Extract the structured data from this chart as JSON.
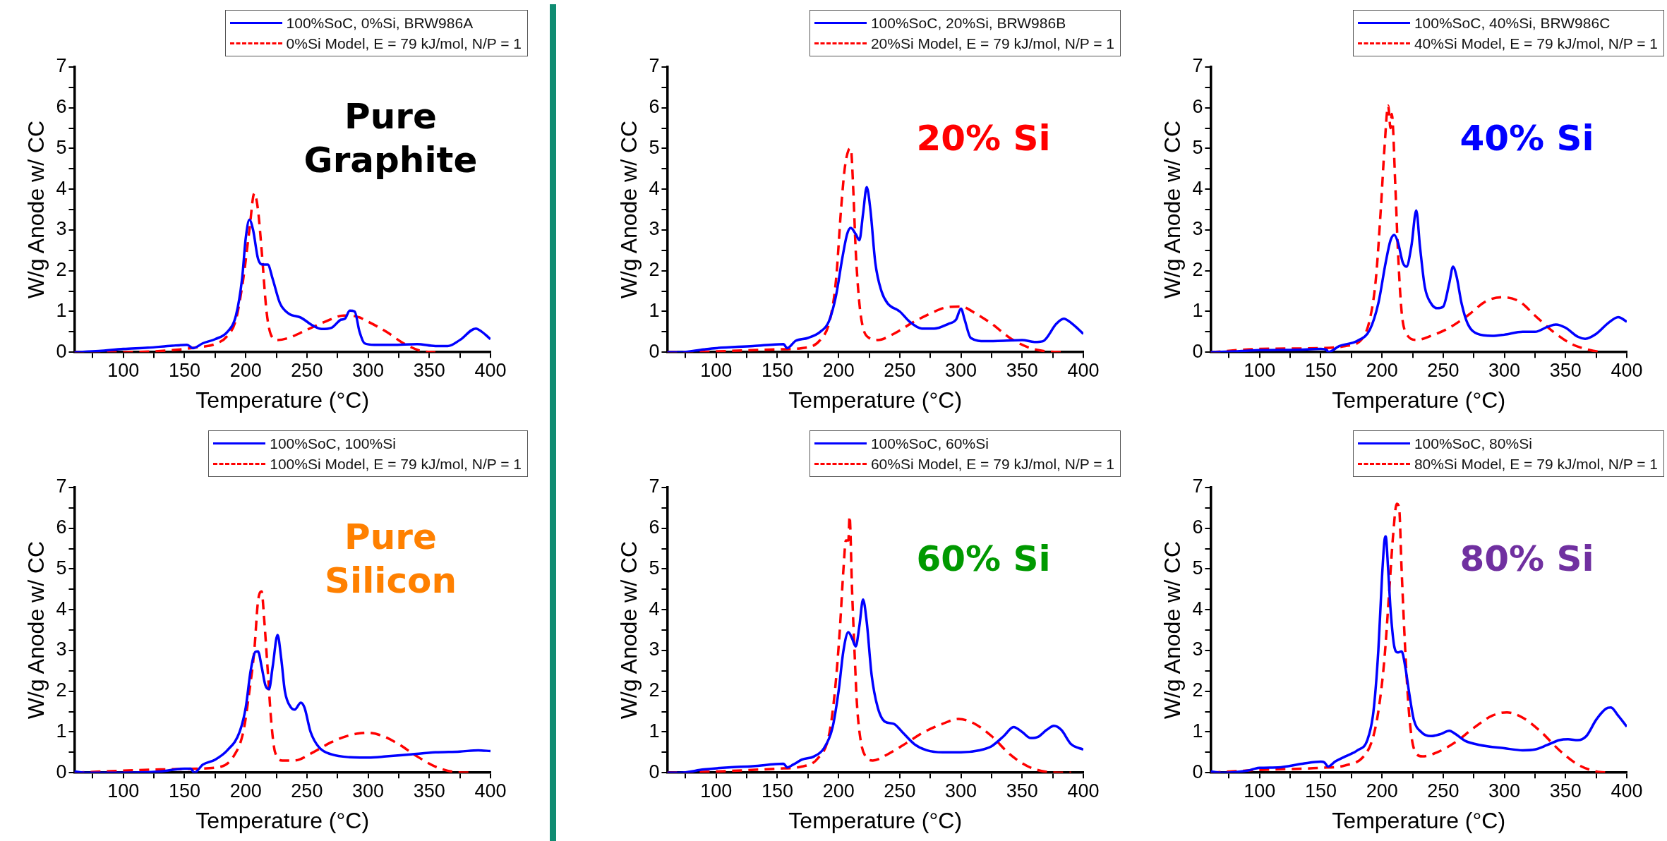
{
  "chart_data": [
    {
      "type": "line",
      "xlabel": "Temperature (°C)",
      "ylabel": "W/g Anode w/ CC",
      "xlim": [
        60,
        400
      ],
      "ylim": [
        0,
        7
      ],
      "xticks": [
        {
          "value": 75,
          "label": null
        },
        100,
        {
          "value": 125,
          "label": null
        },
        150,
        {
          "value": 175,
          "label": null
        },
        200,
        {
          "value": 225,
          "label": null
        },
        250,
        {
          "value": 275,
          "label": null
        },
        300,
        {
          "value": 325,
          "label": null
        },
        350,
        {
          "value": 375,
          "label": null
        },
        400
      ],
      "yticks": [
        0,
        {
          "value": 0.5,
          "label": null
        },
        1,
        {
          "value": 1.5,
          "label": null
        },
        2,
        {
          "value": 2.5,
          "label": null
        },
        3,
        {
          "value": 3.5,
          "label": null
        },
        4,
        {
          "value": 4.5,
          "label": null
        },
        5,
        {
          "value": 5.5,
          "label": null
        },
        6,
        {
          "value": 6.5,
          "label": null
        },
        7
      ],
      "grid": false,
      "legend": "top right",
      "marker": "none",
      "annotations": [
        "Pure Graphite"
      ],
      "series": [
        {
          "name": "100%SoC, 0%Si, BRW986A",
          "color": "#0000ff",
          "line_style": "solid",
          "x": [
            60,
            80,
            100,
            120,
            140,
            152,
            157,
            165,
            175,
            185,
            192,
            197,
            200,
            203,
            206,
            210,
            214,
            218,
            222,
            228,
            235,
            245,
            255,
            262,
            270,
            278,
            281,
            285,
            289,
            293,
            297,
            305,
            320,
            340,
            355,
            365,
            375,
            388,
            393,
            400
          ],
          "values": [
            0,
            0.03,
            0.08,
            0.11,
            0.16,
            0.18,
            0.1,
            0.22,
            0.32,
            0.5,
            0.9,
            1.8,
            2.8,
            3.25,
            3.0,
            2.3,
            2.15,
            2.15,
            1.8,
            1.2,
            0.95,
            0.85,
            0.65,
            0.57,
            0.6,
            0.8,
            0.82,
            1.02,
            1.0,
            0.5,
            0.22,
            0.18,
            0.18,
            0.2,
            0.15,
            0.15,
            0.3,
            0.58,
            0.5,
            0.32
          ]
        },
        {
          "name": "0%Si Model, E = 79 kJ/mol, N/P = 1",
          "color": "#ff0000",
          "line_style": "dashed",
          "x": [
            60,
            100,
            140,
            160,
            175,
            185,
            192,
            198,
            203,
            207,
            210,
            213,
            217,
            221,
            226,
            235,
            250,
            265,
            280,
            290,
            300,
            315,
            330,
            345,
            355
          ],
          "values": [
            0,
            0,
            0.05,
            0.12,
            0.2,
            0.4,
            0.8,
            1.8,
            3.0,
            3.9,
            3.5,
            2.5,
            1.0,
            0.4,
            0.3,
            0.35,
            0.55,
            0.75,
            0.9,
            0.88,
            0.75,
            0.5,
            0.2,
            0.02,
            0
          ]
        }
      ]
    },
    {
      "type": "line",
      "xlabel": "Temperature (°C)",
      "ylabel": "W/g Anode w/ CC",
      "xlim": [
        60,
        400
      ],
      "ylim": [
        0,
        7
      ],
      "xticks": [
        {
          "value": 75,
          "label": null
        },
        100,
        {
          "value": 125,
          "label": null
        },
        150,
        {
          "value": 175,
          "label": null
        },
        200,
        {
          "value": 225,
          "label": null
        },
        250,
        {
          "value": 275,
          "label": null
        },
        300,
        {
          "value": 325,
          "label": null
        },
        350,
        {
          "value": 375,
          "label": null
        },
        400
      ],
      "yticks": [
        0,
        {
          "value": 0.5,
          "label": null
        },
        1,
        {
          "value": 1.5,
          "label": null
        },
        2,
        {
          "value": 2.5,
          "label": null
        },
        3,
        {
          "value": 3.5,
          "label": null
        },
        4,
        {
          "value": 4.5,
          "label": null
        },
        5,
        {
          "value": 5.5,
          "label": null
        },
        6,
        {
          "value": 6.5,
          "label": null
        },
        7
      ],
      "grid": false,
      "legend": "top right",
      "marker": "none",
      "annotations": [
        "20% Si"
      ],
      "series": [
        {
          "name": "100%SoC, 20%Si, BRW986B",
          "color": "#0000ff",
          "line_style": "solid",
          "x": [
            60,
            70,
            90,
            100,
            130,
            155,
            158,
            165,
            175,
            185,
            192,
            198,
            203,
            207,
            210,
            214,
            217,
            220,
            223,
            226,
            230,
            235,
            240,
            250,
            258,
            268,
            278,
            290,
            296,
            300,
            303,
            308,
            320,
            335,
            350,
            360,
            367,
            378,
            384,
            390,
            400
          ],
          "values": [
            0,
            0,
            0.07,
            0.1,
            0.15,
            0.2,
            0.1,
            0.28,
            0.35,
            0.5,
            0.75,
            1.4,
            2.3,
            2.9,
            3.05,
            2.9,
            2.75,
            3.4,
            4.05,
            3.5,
            2.2,
            1.5,
            1.2,
            1.0,
            0.75,
            0.58,
            0.58,
            0.7,
            0.8,
            1.07,
            0.8,
            0.35,
            0.27,
            0.28,
            0.3,
            0.25,
            0.27,
            0.7,
            0.82,
            0.72,
            0.45
          ]
        },
        {
          "name": "20%Si Model, E = 79 kJ/mol, N/P = 1",
          "color": "#ff0000",
          "line_style": "dashed",
          "x": [
            60,
            100,
            150,
            170,
            185,
            193,
            198,
            202,
            205,
            208,
            210,
            212,
            214,
            217,
            220,
            225,
            232,
            245,
            260,
            275,
            288,
            300,
            312,
            325,
            340,
            355,
            370,
            385
          ],
          "values": [
            0,
            0.02,
            0.07,
            0.1,
            0.3,
            0.8,
            1.8,
            3.5,
            4.5,
            4.95,
            5.0,
            4.0,
            2.5,
            1.2,
            0.6,
            0.35,
            0.3,
            0.45,
            0.72,
            0.95,
            1.1,
            1.12,
            0.95,
            0.7,
            0.35,
            0.12,
            0.02,
            0
          ]
        }
      ]
    },
    {
      "type": "line",
      "xlabel": "Temperature (°C)",
      "ylabel": "W/g Anode w/ CC",
      "xlim": [
        60,
        400
      ],
      "ylim": [
        0,
        7
      ],
      "xticks": [
        {
          "value": 75,
          "label": null
        },
        100,
        {
          "value": 125,
          "label": null
        },
        150,
        {
          "value": 175,
          "label": null
        },
        200,
        {
          "value": 225,
          "label": null
        },
        250,
        {
          "value": 275,
          "label": null
        },
        300,
        {
          "value": 325,
          "label": null
        },
        350,
        {
          "value": 375,
          "label": null
        },
        400
      ],
      "yticks": [
        0,
        {
          "value": 0.5,
          "label": null
        },
        1,
        {
          "value": 1.5,
          "label": null
        },
        2,
        {
          "value": 2.5,
          "label": null
        },
        3,
        {
          "value": 3.5,
          "label": null
        },
        4,
        {
          "value": 4.5,
          "label": null
        },
        5,
        {
          "value": 5.5,
          "label": null
        },
        6,
        {
          "value": 6.5,
          "label": null
        },
        7
      ],
      "grid": false,
      "legend": "top right",
      "marker": "none",
      "annotations": [
        "40% Si"
      ],
      "series": [
        {
          "name": "100%SoC, 40%Si, BRW986C",
          "color": "#0000ff",
          "line_style": "solid",
          "x": [
            60,
            80,
            100,
            130,
            150,
            155,
            156,
            165,
            180,
            190,
            197,
            203,
            207,
            210,
            213,
            217,
            220,
            224,
            228,
            231,
            235,
            240,
            245,
            250,
            255,
            258,
            261,
            265,
            270,
            278,
            290,
            300,
            315,
            325,
            335,
            342,
            350,
            360,
            366,
            375,
            385,
            393,
            400
          ],
          "values": [
            0,
            0.02,
            0.05,
            0.06,
            0.08,
            0.05,
            0,
            0.15,
            0.28,
            0.55,
            1.2,
            2.2,
            2.75,
            2.88,
            2.7,
            2.2,
            2.1,
            2.6,
            3.48,
            2.6,
            1.6,
            1.2,
            1.08,
            1.12,
            1.7,
            2.1,
            1.85,
            1.2,
            0.7,
            0.45,
            0.4,
            0.43,
            0.5,
            0.5,
            0.62,
            0.68,
            0.6,
            0.38,
            0.33,
            0.45,
            0.72,
            0.86,
            0.75
          ]
        },
        {
          "name": "40%Si Model, E = 79 kJ/mol, N/P = 1",
          "color": "#ff0000",
          "line_style": "dashed",
          "x": [
            60,
            100,
            150,
            170,
            183,
            190,
            195,
            199,
            202,
            205,
            207,
            208,
            211,
            213,
            216,
            220,
            228,
            240,
            255,
            270,
            285,
            298,
            312,
            325,
            340,
            355,
            370,
            380
          ],
          "values": [
            0,
            0.08,
            0.1,
            0.15,
            0.3,
            0.8,
            1.8,
            3.5,
            5.0,
            6.05,
            5.5,
            5.85,
            4.0,
            2.5,
            1.0,
            0.45,
            0.3,
            0.4,
            0.6,
            0.9,
            1.25,
            1.35,
            1.25,
            0.9,
            0.5,
            0.2,
            0.05,
            0
          ]
        }
      ]
    },
    {
      "type": "line",
      "xlabel": "Temperature (°C)",
      "ylabel": "W/g Anode w/ CC",
      "xlim": [
        60,
        400
      ],
      "ylim": [
        0,
        7
      ],
      "xticks": [
        {
          "value": 75,
          "label": null
        },
        100,
        {
          "value": 125,
          "label": null
        },
        150,
        {
          "value": 175,
          "label": null
        },
        200,
        {
          "value": 225,
          "label": null
        },
        250,
        {
          "value": 275,
          "label": null
        },
        300,
        {
          "value": 325,
          "label": null
        },
        350,
        {
          "value": 375,
          "label": null
        },
        400
      ],
      "yticks": [
        0,
        {
          "value": 0.5,
          "label": null
        },
        1,
        {
          "value": 1.5,
          "label": null
        },
        2,
        {
          "value": 2.5,
          "label": null
        },
        3,
        {
          "value": 3.5,
          "label": null
        },
        4,
        {
          "value": 4.5,
          "label": null
        },
        5,
        {
          "value": 5.5,
          "label": null
        },
        6,
        {
          "value": 6.5,
          "label": null
        },
        7
      ],
      "grid": false,
      "legend": "top right",
      "marker": "none",
      "annotations": [
        "Pure Silicon"
      ],
      "series": [
        {
          "name": "100%SoC, 100%Si",
          "color": "#0000ff",
          "line_style": "solid",
          "x": [
            60,
            70,
            100,
            130,
            150,
            155,
            158,
            165,
            175,
            185,
            195,
            200,
            204,
            208,
            210,
            213,
            216,
            219,
            222,
            226,
            229,
            232,
            237,
            240,
            245,
            248,
            253,
            260,
            270,
            285,
            300,
            315,
            335,
            355,
            375,
            390,
            400
          ],
          "values": [
            0.03,
            0,
            0,
            0.03,
            0.1,
            0.1,
            0,
            0.2,
            0.32,
            0.55,
            1.0,
            1.6,
            2.5,
            2.97,
            2.98,
            2.6,
            2.15,
            2.05,
            2.6,
            3.38,
            2.8,
            2.0,
            1.6,
            1.55,
            1.72,
            1.6,
            1.0,
            0.62,
            0.45,
            0.38,
            0.37,
            0.4,
            0.45,
            0.5,
            0.52,
            0.55,
            0.53
          ]
        },
        {
          "name": "100%Si Model, E = 79 kJ/mol, N/P = 1",
          "color": "#ff0000",
          "line_style": "dashed",
          "x": [
            60,
            100,
            130,
            160,
            180,
            190,
            198,
            203,
            207,
            210,
            213,
            215,
            218,
            221,
            224,
            230,
            240,
            255,
            270,
            285,
            300,
            312,
            325,
            340,
            355,
            370,
            385
          ],
          "values": [
            0,
            0.05,
            0.08,
            0.1,
            0.15,
            0.4,
            1.0,
            2.0,
            3.0,
            4.2,
            4.45,
            3.8,
            2.5,
            1.2,
            0.5,
            0.3,
            0.3,
            0.5,
            0.75,
            0.92,
            0.98,
            0.9,
            0.7,
            0.4,
            0.15,
            0.02,
            0
          ]
        }
      ]
    },
    {
      "type": "line",
      "xlabel": "Temperature (°C)",
      "ylabel": "W/g Anode w/ CC",
      "xlim": [
        60,
        400
      ],
      "ylim": [
        0,
        7
      ],
      "xticks": [
        {
          "value": 75,
          "label": null
        },
        100,
        {
          "value": 125,
          "label": null
        },
        150,
        {
          "value": 175,
          "label": null
        },
        200,
        {
          "value": 225,
          "label": null
        },
        250,
        {
          "value": 275,
          "label": null
        },
        300,
        {
          "value": 325,
          "label": null
        },
        350,
        {
          "value": 375,
          "label": null
        },
        400
      ],
      "yticks": [
        0,
        {
          "value": 0.5,
          "label": null
        },
        1,
        {
          "value": 1.5,
          "label": null
        },
        2,
        {
          "value": 2.5,
          "label": null
        },
        3,
        {
          "value": 3.5,
          "label": null
        },
        4,
        {
          "value": 4.5,
          "label": null
        },
        5,
        {
          "value": 5.5,
          "label": null
        },
        6,
        {
          "value": 6.5,
          "label": null
        },
        7
      ],
      "grid": false,
      "legend": "top right",
      "marker": "none",
      "annotations": [
        "60% Si"
      ],
      "series": [
        {
          "name": "100%SoC, 60%Si",
          "color": "#0000ff",
          "line_style": "solid",
          "x": [
            60,
            70,
            90,
            110,
            130,
            155,
            158,
            163,
            170,
            180,
            188,
            195,
            200,
            204,
            208,
            211,
            214,
            217,
            220,
            223,
            227,
            232,
            238,
            245,
            252,
            262,
            272,
            285,
            300,
            315,
            325,
            335,
            343,
            350,
            357,
            363,
            370,
            376,
            382,
            390,
            400
          ],
          "values": [
            0,
            0,
            0.08,
            0.13,
            0.16,
            0.22,
            0.13,
            0.2,
            0.32,
            0.4,
            0.6,
            1.1,
            2.0,
            3.0,
            3.45,
            3.3,
            3.1,
            3.6,
            4.25,
            3.7,
            2.4,
            1.6,
            1.25,
            1.2,
            1.0,
            0.7,
            0.55,
            0.5,
            0.5,
            0.55,
            0.65,
            0.9,
            1.12,
            1.0,
            0.85,
            0.88,
            1.05,
            1.15,
            1.05,
            0.7,
            0.57
          ]
        },
        {
          "name": "60%Si Model, E = 79 kJ/mol, N/P = 1",
          "color": "#ff0000",
          "line_style": "dashed",
          "x": [
            60,
            100,
            150,
            170,
            183,
            192,
            197,
            201,
            204,
            206,
            208,
            209,
            211,
            213,
            215,
            218,
            222,
            228,
            240,
            255,
            270,
            285,
            298,
            310,
            325,
            340,
            355,
            370,
            380,
            390
          ],
          "values": [
            0,
            0.03,
            0.1,
            0.15,
            0.35,
            0.9,
            2.0,
            3.5,
            5.0,
            5.7,
            5.7,
            6.3,
            4.5,
            3.0,
            1.7,
            0.8,
            0.4,
            0.3,
            0.45,
            0.72,
            1.0,
            1.2,
            1.32,
            1.22,
            0.9,
            0.45,
            0.15,
            0.02,
            0,
            0
          ]
        }
      ]
    },
    {
      "type": "line",
      "xlabel": "Temperature (°C)",
      "ylabel": "W/g Anode w/ CC",
      "xlim": [
        60,
        400
      ],
      "ylim": [
        0,
        7
      ],
      "xticks": [
        {
          "value": 75,
          "label": null
        },
        100,
        {
          "value": 125,
          "label": null
        },
        150,
        {
          "value": 175,
          "label": null
        },
        200,
        {
          "value": 225,
          "label": null
        },
        250,
        {
          "value": 275,
          "label": null
        },
        300,
        {
          "value": 325,
          "label": null
        },
        350,
        {
          "value": 375,
          "label": null
        },
        400
      ],
      "yticks": [
        0,
        {
          "value": 0.5,
          "label": null
        },
        1,
        {
          "value": 1.5,
          "label": null
        },
        2,
        {
          "value": 2.5,
          "label": null
        },
        3,
        {
          "value": 3.5,
          "label": null
        },
        4,
        {
          "value": 4.5,
          "label": null
        },
        5,
        {
          "value": 5.5,
          "label": null
        },
        6,
        {
          "value": 6.5,
          "label": null
        },
        7
      ],
      "grid": false,
      "legend": "top right",
      "marker": "none",
      "annotations": [
        "80% Si"
      ],
      "series": [
        {
          "name": "100%SoC, 80%Si",
          "color": "#0000ff",
          "line_style": "solid",
          "x": [
            60,
            70,
            90,
            100,
            115,
            135,
            150,
            153,
            156,
            162,
            170,
            180,
            188,
            193,
            197,
            200,
            202,
            203,
            205,
            207,
            210,
            213,
            216,
            219,
            222,
            226,
            232,
            240,
            248,
            255,
            260,
            268,
            280,
            300,
            315,
            325,
            335,
            345,
            352,
            360,
            367,
            375,
            383,
            387,
            393,
            400
          ],
          "values": [
            0.03,
            0,
            0.05,
            0.12,
            0.13,
            0.22,
            0.27,
            0.25,
            0.15,
            0.28,
            0.4,
            0.55,
            0.8,
            1.5,
            3.0,
            4.8,
            5.7,
            5.8,
            5.0,
            4.0,
            3.1,
            2.95,
            2.98,
            2.6,
            2.0,
            1.3,
            1.0,
            0.9,
            0.95,
            1.03,
            0.95,
            0.78,
            0.68,
            0.6,
            0.55,
            0.57,
            0.68,
            0.8,
            0.82,
            0.8,
            0.9,
            1.3,
            1.57,
            1.6,
            1.4,
            1.13
          ]
        },
        {
          "name": "80%Si Model, E = 79 kJ/mol, N/P = 1",
          "color": "#ff0000",
          "line_style": "dashed",
          "x": [
            60,
            100,
            150,
            170,
            185,
            192,
            197,
            202,
            206,
            209,
            212,
            214,
            216,
            219,
            222,
            226,
            233,
            245,
            260,
            275,
            290,
            302,
            315,
            330,
            345,
            360,
            375,
            385
          ],
          "values": [
            0,
            0.07,
            0.12,
            0.18,
            0.4,
            0.8,
            1.5,
            2.8,
            4.5,
            5.8,
            6.6,
            6.5,
            5.0,
            3.0,
            1.5,
            0.6,
            0.4,
            0.5,
            0.75,
            1.1,
            1.4,
            1.48,
            1.35,
            1.0,
            0.55,
            0.2,
            0.03,
            0
          ]
        }
      ]
    }
  ]
}
